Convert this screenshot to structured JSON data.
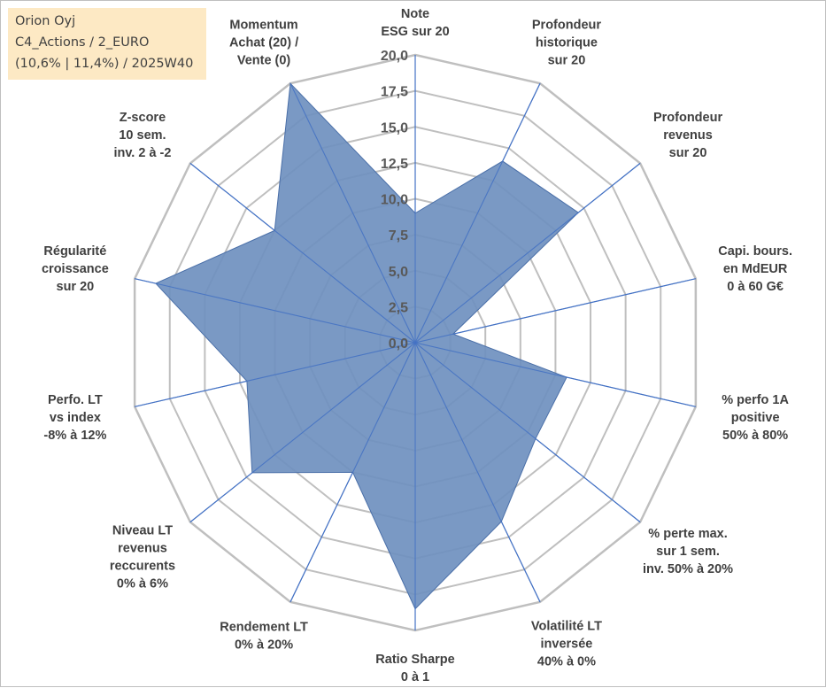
{
  "info_box": {
    "line1": "Orion Oyj",
    "line2": "C4_Actions / 2_EURO",
    "line3": "(10,6% | 11,4%) / 2025W40"
  },
  "chart_data": {
    "type": "radar",
    "title": "",
    "range": [
      0,
      20
    ],
    "tick_values": [
      0,
      2.5,
      5,
      7.5,
      10,
      12.5,
      15,
      17.5,
      20
    ],
    "tick_labels": [
      "0,0",
      "2,5",
      "5,0",
      "7,5",
      "10,0",
      "12,5",
      "15,0",
      "17,5",
      "20,0"
    ],
    "grid": true,
    "colors": {
      "fill": "#6f90bf",
      "stroke": "#4a6fa8",
      "axis": "#4472c4",
      "grid": "#bfbfbf"
    },
    "axes": [
      {
        "lines": [
          "Note",
          "ESG sur 20"
        ],
        "value": 9.0
      },
      {
        "lines": [
          "Profondeur",
          "historique",
          "sur 20"
        ],
        "value": 14.0
      },
      {
        "lines": [
          "Profondeur",
          "revenus",
          "sur 20"
        ],
        "value": 14.5
      },
      {
        "lines": [
          "Capi. bours.",
          "en MdEUR",
          "0 à 60 G€"
        ],
        "value": 2.7
      },
      {
        "lines": [
          "% perfo 1A",
          "positive",
          "50% à 80%"
        ],
        "value": 10.8
      },
      {
        "lines": [
          "% perte max.",
          "sur 1 sem.",
          "inv. 50% à 20%"
        ],
        "value": 10.7
      },
      {
        "lines": [
          "Volatilité LT",
          "inversée",
          "40% à 0%"
        ],
        "value": 13.8
      },
      {
        "lines": [
          "Ratio Sharpe",
          "0 à 1"
        ],
        "value": 18.5
      },
      {
        "lines": [
          "Rendement LT",
          "0% à 20%"
        ],
        "value": 10.0
      },
      {
        "lines": [
          "Niveau LT",
          "revenus",
          "reccurents",
          "0% à 6%"
        ],
        "value": 14.5
      },
      {
        "lines": [
          "Perfo. LT",
          "vs index",
          "-8% à 12%"
        ],
        "value": 12.0
      },
      {
        "lines": [
          "Régularité",
          "croissance",
          "sur 20"
        ],
        "value": 18.5
      },
      {
        "lines": [
          "Z-score",
          "10 sem.",
          "inv. 2 à -2"
        ],
        "value": 12.5
      },
      {
        "lines": [
          "Momentum",
          "Achat (20) /",
          "Vente (0)"
        ],
        "value": 20.0
      }
    ]
  }
}
